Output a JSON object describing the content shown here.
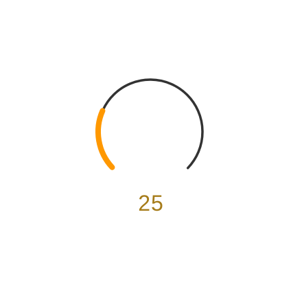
{
  "gauge": {
    "value": "25",
    "level": 25,
    "min": 0,
    "max": 100,
    "colors": {
      "track": "#333333",
      "progress": "#ff9800",
      "value_text": "#a67c1a",
      "background": "#ffffff"
    }
  }
}
